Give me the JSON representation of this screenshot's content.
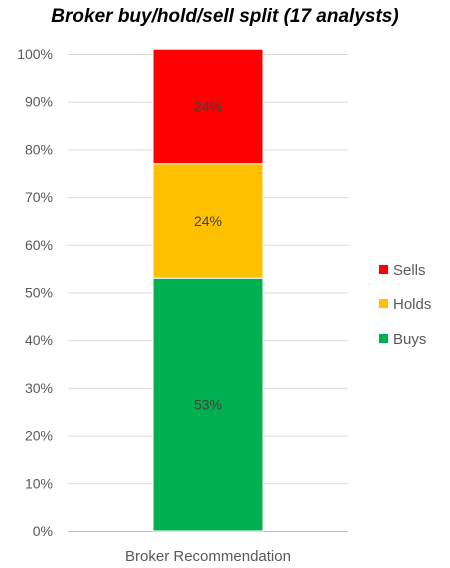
{
  "chart_data": {
    "type": "bar",
    "stacked": true,
    "title": "Broker buy/hold/sell split (17 analysts)",
    "categories": [
      "Broker Recommendation"
    ],
    "series": [
      {
        "name": "Buys",
        "values": [
          53
        ],
        "label": "53%",
        "color": "#00b050"
      },
      {
        "name": "Holds",
        "values": [
          24
        ],
        "label": "24%",
        "color": "#ffc000"
      },
      {
        "name": "Sells",
        "values": [
          24
        ],
        "label": "24%",
        "color": "#ff0000"
      }
    ],
    "legend_order": [
      "Sells",
      "Holds",
      "Buys"
    ],
    "legend_position": "right",
    "ylim": [
      0,
      100
    ],
    "y_ticks": [
      {
        "value": 0,
        "label": "0%"
      },
      {
        "value": 10,
        "label": "10%"
      },
      {
        "value": 20,
        "label": "20%"
      },
      {
        "value": 30,
        "label": "30%"
      },
      {
        "value": 40,
        "label": "40%"
      },
      {
        "value": 50,
        "label": "50%"
      },
      {
        "value": 60,
        "label": "60%"
      },
      {
        "value": 70,
        "label": "70%"
      },
      {
        "value": 80,
        "label": "80%"
      },
      {
        "value": 90,
        "label": "90%"
      },
      {
        "value": 100,
        "label": "100%"
      }
    ],
    "grid": true
  }
}
